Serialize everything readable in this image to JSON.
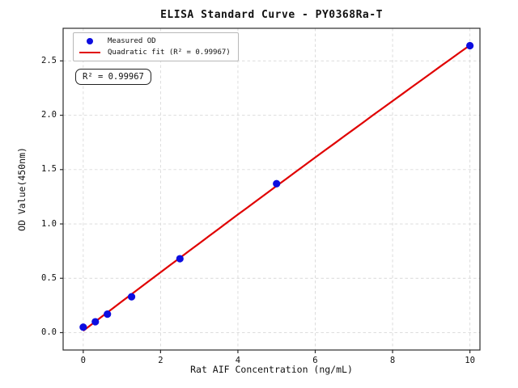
{
  "figure": {
    "background": "#ffffff"
  },
  "chart_data": {
    "type": "scatter",
    "title": "ELISA Standard Curve - PY0368Ra-T",
    "xlabel": "Rat AIF Concentration (ng/mL)",
    "ylabel": "OD Value(450nm)",
    "series": [
      {
        "name": "Measured OD",
        "x": [
          0,
          0.3125,
          0.625,
          1.25,
          2.5,
          5,
          10
        ],
        "y": [
          0.05,
          0.1,
          0.17,
          0.33,
          0.68,
          1.37,
          2.64
        ]
      }
    ],
    "fit": {
      "type": "quadratic",
      "label": "Quadratic fit (R² = 0.99967)",
      "r_squared": 0.99967,
      "x_range": [
        0,
        10
      ]
    },
    "xlim": [
      -0.52,
      10.26
    ],
    "ylim": [
      -0.16,
      2.8
    ],
    "x_ticks": [
      "0",
      "2",
      "4",
      "6",
      "8",
      "10"
    ],
    "y_ticks": [
      "0.0",
      "0.5",
      "1.0",
      "1.5",
      "2.0",
      "2.5"
    ],
    "grid": true,
    "legend_position": "upper left",
    "colors": {
      "points": "#0d0de0",
      "fit_line": "#e00000",
      "grid": "#d9d9d9",
      "spine": "#2b2b2b",
      "text": "#111111"
    }
  },
  "legend": {
    "items": [
      {
        "marker": "dot",
        "label": "Measured OD"
      },
      {
        "marker": "line",
        "label": "Quadratic fit (R² = 0.99967)"
      }
    ]
  },
  "annotation": {
    "text": "R² = 0.99967"
  }
}
